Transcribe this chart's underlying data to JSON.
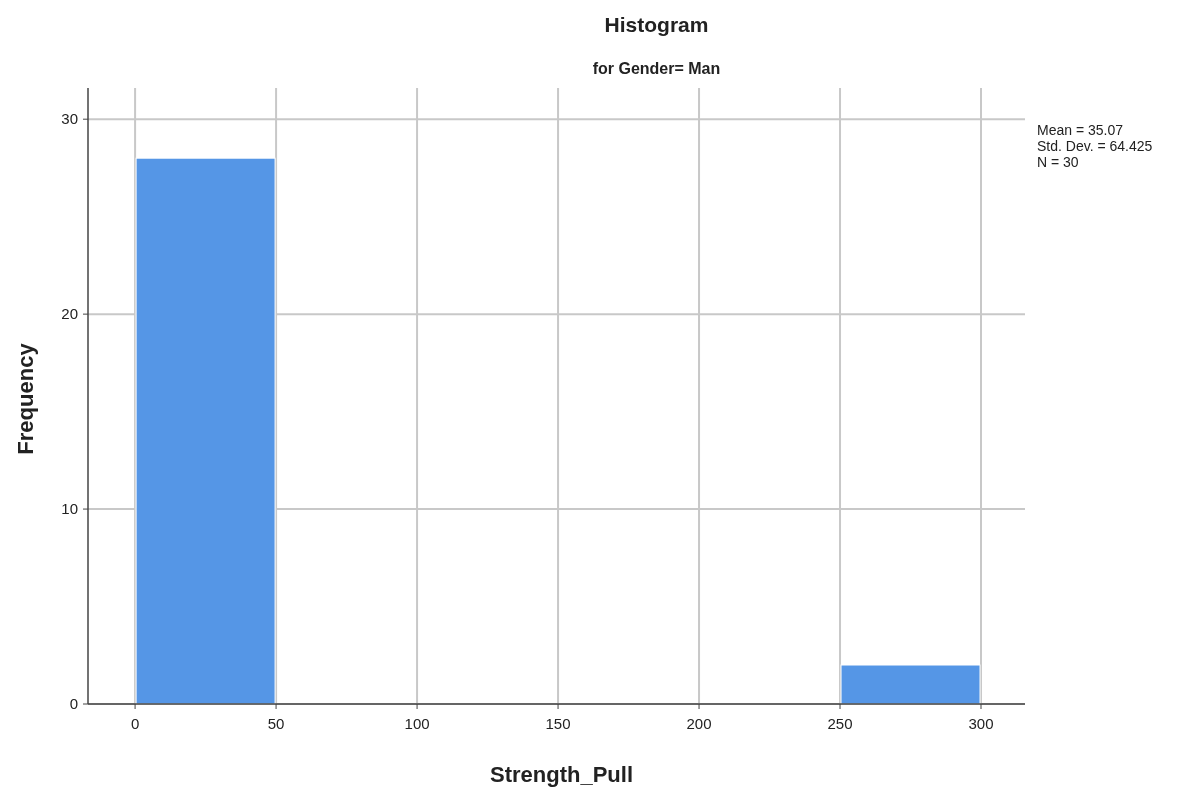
{
  "chart_data": {
    "type": "histogram",
    "title": "Histogram",
    "subtitle": "for Gender= Man",
    "xlabel": "Strength_Pull",
    "ylabel": "Frequency",
    "bins": [
      0,
      50,
      100,
      150,
      200,
      250,
      300
    ],
    "values": [
      28,
      0,
      0,
      0,
      0,
      2
    ],
    "color": "#5596e6",
    "xlim": [
      -16.7,
      315.6
    ],
    "xticks": [
      0,
      50,
      100,
      150,
      200,
      250,
      300
    ],
    "ylim": [
      0,
      31.6
    ],
    "yticks": [
      0,
      10,
      20,
      30
    ],
    "grid": true,
    "annotations": [
      "Mean = 35.07",
      "Std. Dev. = 64.425",
      "N = 30"
    ]
  }
}
